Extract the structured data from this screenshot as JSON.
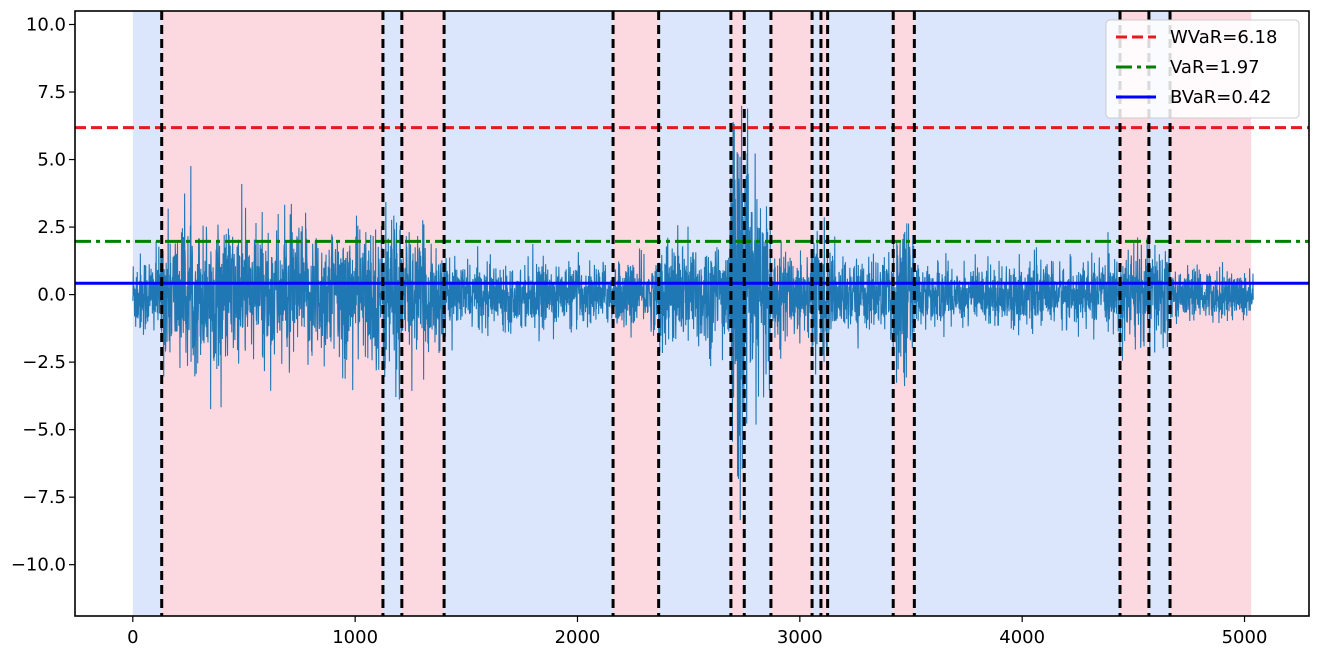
{
  "chart_data": {
    "type": "line",
    "title": "",
    "xlabel": "",
    "ylabel": "",
    "xlim": [
      -260,
      5290
    ],
    "ylim": [
      -11.9,
      10.5
    ],
    "grid": false,
    "legend_position": "top-right",
    "x_ticks": [
      0,
      1000,
      2000,
      3000,
      4000,
      5000
    ],
    "x_tick_labels": [
      "0",
      "1000",
      "2000",
      "3000",
      "4000",
      "5000"
    ],
    "y_ticks": [
      10.0,
      7.5,
      5.0,
      2.5,
      0.0,
      -2.5,
      -5.0,
      -7.5,
      -10.0
    ],
    "y_tick_labels": [
      "10.0",
      "7.5",
      "5.0",
      "2.5",
      "0.0",
      "−2.5",
      "−5.0",
      "−7.5",
      "−10.0"
    ],
    "series_color": "#1f77b4",
    "n_points": 5040,
    "volatility_profile": [
      {
        "start": 0,
        "end": 130,
        "std": 0.75
      },
      {
        "start": 130,
        "end": 1125,
        "std": 1.25
      },
      {
        "start": 1125,
        "end": 1210,
        "std": 1.6
      },
      {
        "start": 1210,
        "end": 1400,
        "std": 1.05
      },
      {
        "start": 1400,
        "end": 2160,
        "std": 0.55
      },
      {
        "start": 2160,
        "end": 2365,
        "std": 0.6
      },
      {
        "start": 2365,
        "end": 2690,
        "std": 1.0
      },
      {
        "start": 2690,
        "end": 2750,
        "std": 3.4
      },
      {
        "start": 2750,
        "end": 2870,
        "std": 1.8
      },
      {
        "start": 2870,
        "end": 3055,
        "std": 0.8
      },
      {
        "start": 3055,
        "end": 3125,
        "std": 1.2
      },
      {
        "start": 3125,
        "end": 3420,
        "std": 0.65
      },
      {
        "start": 3420,
        "end": 3515,
        "std": 1.5
      },
      {
        "start": 3515,
        "end": 4440,
        "std": 0.55
      },
      {
        "start": 4440,
        "end": 4665,
        "std": 0.95
      },
      {
        "start": 4665,
        "end": 5040,
        "std": 0.45
      }
    ],
    "regimes": [
      {
        "start": 0,
        "end": 130,
        "color": "#dbe5fb"
      },
      {
        "start": 130,
        "end": 1125,
        "color": "#fcd9e1"
      },
      {
        "start": 1125,
        "end": 1210,
        "color": "#dbe5fb"
      },
      {
        "start": 1210,
        "end": 1400,
        "color": "#fcd9e1"
      },
      {
        "start": 1400,
        "end": 2160,
        "color": "#dbe5fb"
      },
      {
        "start": 2160,
        "end": 2365,
        "color": "#fcd9e1"
      },
      {
        "start": 2365,
        "end": 2690,
        "color": "#dbe5fb"
      },
      {
        "start": 2690,
        "end": 2750,
        "color": "#fcd9e1"
      },
      {
        "start": 2750,
        "end": 2870,
        "color": "#dbe5fb"
      },
      {
        "start": 2870,
        "end": 3055,
        "color": "#fcd9e1"
      },
      {
        "start": 3055,
        "end": 3095,
        "color": "#dbe5fb"
      },
      {
        "start": 3095,
        "end": 3125,
        "color": "#fcd9e1"
      },
      {
        "start": 3125,
        "end": 3420,
        "color": "#dbe5fb"
      },
      {
        "start": 3420,
        "end": 3515,
        "color": "#fcd9e1"
      },
      {
        "start": 3515,
        "end": 4440,
        "color": "#dbe5fb"
      },
      {
        "start": 4440,
        "end": 4570,
        "color": "#fcd9e1"
      },
      {
        "start": 4570,
        "end": 4665,
        "color": "#dbe5fb"
      },
      {
        "start": 4665,
        "end": 5030,
        "color": "#fcd9e1"
      }
    ],
    "change_points": [
      130,
      1125,
      1210,
      1400,
      2160,
      2365,
      2690,
      2750,
      2870,
      3055,
      3095,
      3125,
      3420,
      3515,
      4440,
      4570,
      4665
    ],
    "horizontal_lines": [
      {
        "name": "WVaR=6.18",
        "value": 6.18,
        "color": "#e41a1c",
        "style": "dashed"
      },
      {
        "name": "VaR=1.97",
        "value": 1.97,
        "color": "#008000",
        "style": "dashdot"
      },
      {
        "name": "BVaR=0.42",
        "value": 0.42,
        "color": "#0000ff",
        "style": "solid"
      }
    ]
  }
}
